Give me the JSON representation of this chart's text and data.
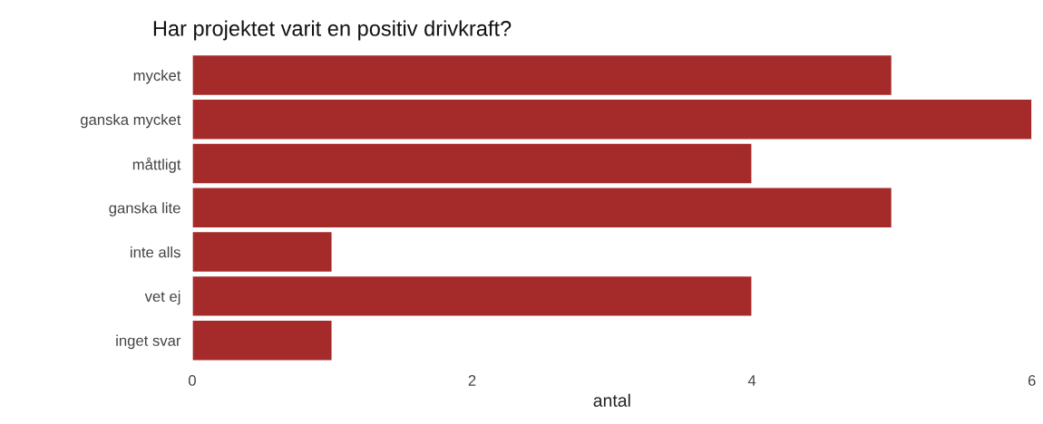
{
  "chart_data": {
    "type": "bar",
    "orientation": "horizontal",
    "title": "Har projektet varit en positiv drivkraft?",
    "xlabel": "antal",
    "categories": [
      "mycket",
      "ganska mycket",
      "måttligt",
      "ganska lite",
      "inte alls",
      "vet ej",
      "inget svar"
    ],
    "values": [
      5,
      6,
      4,
      5,
      1,
      4,
      1
    ],
    "color": "#a52a2a",
    "xlim": [
      0,
      6
    ],
    "xticks": [
      0,
      2,
      4,
      6
    ],
    "grid": false
  }
}
